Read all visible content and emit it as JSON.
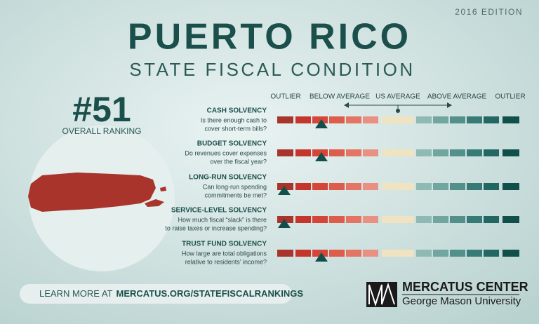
{
  "header": {
    "edition": "2016 EDITION",
    "title": "PUERTO RICO",
    "subtitle": "STATE FISCAL CONDITION"
  },
  "ranking": {
    "rank": "#51",
    "label": "OVERALL RANKING"
  },
  "scale": {
    "labels": [
      "OUTLIER",
      "BELOW AVERAGE",
      "US AVERAGE",
      "ABOVE AVERAGE",
      "OUTLIER"
    ]
  },
  "indicators": [
    {
      "title": "CASH SOLVENCY",
      "description": [
        "Is there enough cash to",
        "cover short-term bills?"
      ]
    },
    {
      "title": "BUDGET SOLVENCY",
      "description": [
        "Do revenues cover expenses",
        "over the fiscal year?"
      ]
    },
    {
      "title": "LONG-RUN SOLVENCY",
      "description": [
        "Can long-run spending",
        "commitments be met?"
      ]
    },
    {
      "title": "SERVICE-LEVEL SOLVENCY",
      "description": [
        "How much fiscal “slack” is there",
        "to raise taxes or increase spending?"
      ]
    },
    {
      "title": "TRUST FUND SOLVENCY",
      "description": [
        "How large are total obligations",
        "relative to residents’ income?"
      ]
    }
  ],
  "footer": {
    "prefix": "LEARN MORE AT",
    "link": "MERCATUS.ORG/STATEFISCALRANKINGS"
  },
  "logo": {
    "name": "MERCATUS CENTER",
    "university": "George Mason University"
  }
}
